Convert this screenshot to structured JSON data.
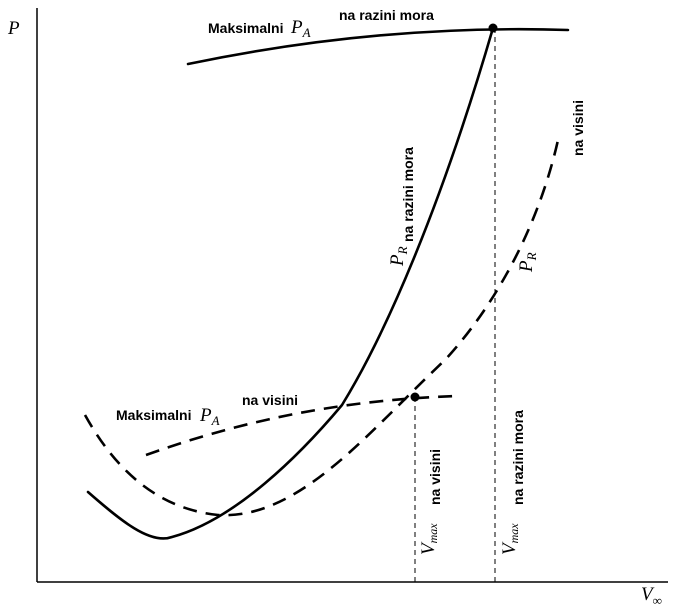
{
  "axes": {
    "y_label": "P",
    "x_label": "V",
    "x_label_sub": "∞"
  },
  "curves": {
    "pa_sea": {
      "prefix": "Maksimalni",
      "symbol": "P",
      "sub": "A",
      "suffix": "na razini mora"
    },
    "pa_alt": {
      "prefix": "Maksimalni",
      "symbol": "P",
      "sub": "A",
      "suffix": "na visini"
    },
    "pr_sea": {
      "symbol": "P",
      "sub": "R",
      "suffix": "na razini mora"
    },
    "pr_alt": {
      "symbol": "P",
      "sub": "R",
      "suffix": "na visini"
    }
  },
  "vmax": {
    "sea": {
      "symbol": "V",
      "sub": "max",
      "suffix": "na razini mora"
    },
    "alt": {
      "symbol": "V",
      "sub": "max",
      "suffix": "na visini"
    }
  }
}
